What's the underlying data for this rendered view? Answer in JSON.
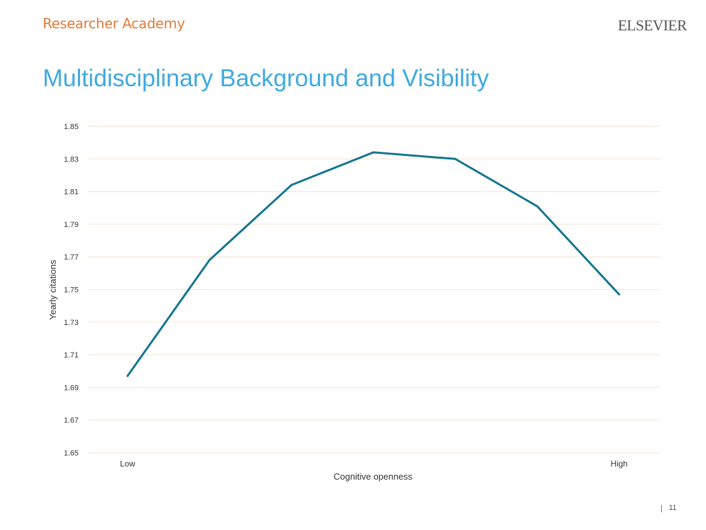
{
  "header": {
    "brand": "Researcher Academy",
    "publisher": "ELSEVIER",
    "title": "Multidisciplinary Background and Visibility"
  },
  "footer": {
    "separator": "|",
    "page_number": "11"
  },
  "chart_data": {
    "type": "line",
    "title": "",
    "xlabel": "Cognitive openness",
    "ylabel": "Yearly citations",
    "x": [
      "Low",
      "",
      "",
      "",
      "",
      "",
      "High"
    ],
    "x_tick_labels": [
      "Low",
      "High"
    ],
    "series": [
      {
        "values": [
          1.697,
          1.768,
          1.814,
          1.834,
          1.83,
          1.801,
          1.747
        ]
      }
    ],
    "ylim": [
      1.65,
      1.85
    ],
    "yticks": [
      "1.85",
      "1.83",
      "1.81",
      "1.79",
      "1.77",
      "1.75",
      "1.73",
      "1.71",
      "1.69",
      "1.67",
      "1.65"
    ],
    "grid": true,
    "legend": "none",
    "colors": {
      "line": "#14758f",
      "grid": "#f3e3cf",
      "tick_text": "#333333"
    }
  }
}
